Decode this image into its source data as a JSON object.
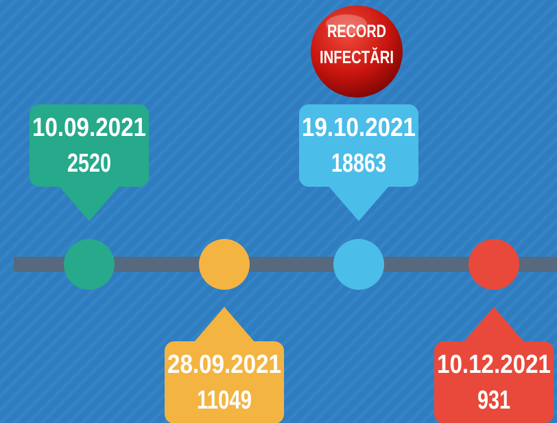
{
  "badge": {
    "lines": [
      "RECORD",
      "INFECTĂRI"
    ]
  },
  "events": [
    {
      "date": "10.09.2021",
      "count": "2520",
      "color": "#27a98b"
    },
    {
      "date": "28.09.2021",
      "count": "11049",
      "color": "#f4b441"
    },
    {
      "date": "19.10.2021",
      "count": "18863",
      "color": "#4bbde9"
    },
    {
      "date": "10.12.2021",
      "count": "931",
      "color": "#e8493b"
    }
  ]
}
